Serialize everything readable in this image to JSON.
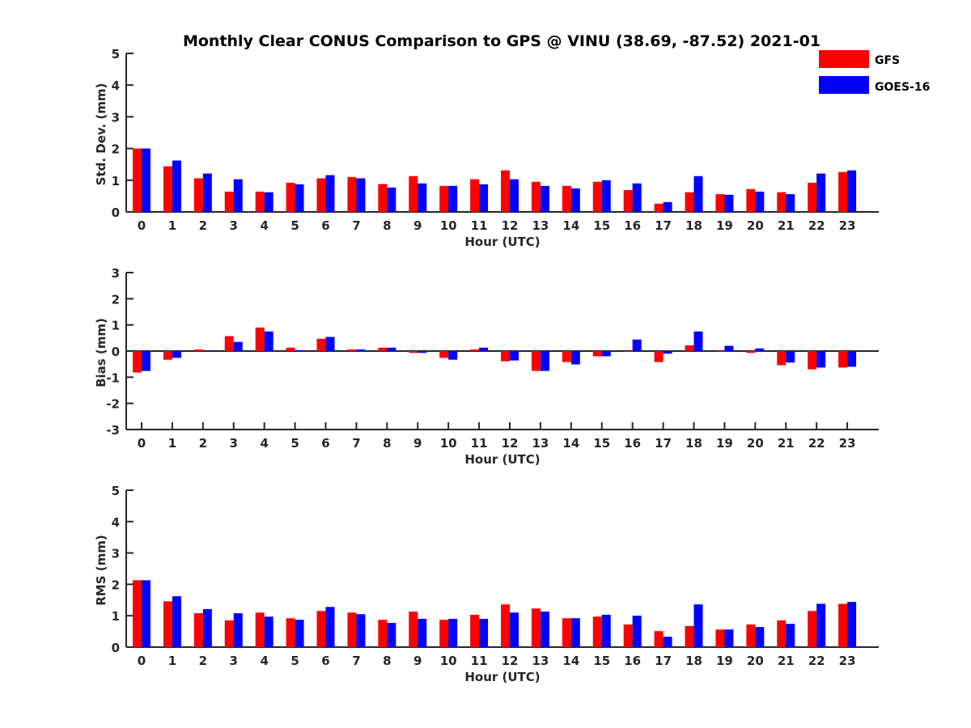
{
  "chart_data": [
    {
      "type": "bar",
      "title": "Monthly Clear CONUS Comparison to GPS @ VINU (38.69, -87.52) 2021-01",
      "xlabel": "Hour (UTC)",
      "ylabel": "Std. Dev. (mm)",
      "ylim": [
        0,
        5
      ],
      "yticks": [
        "0",
        "1",
        "2",
        "3",
        "4",
        "5"
      ],
      "categories": [
        "0",
        "1",
        "2",
        "3",
        "4",
        "5",
        "6",
        "7",
        "8",
        "9",
        "10",
        "11",
        "12",
        "13",
        "14",
        "15",
        "16",
        "17",
        "18",
        "19",
        "20",
        "21",
        "22",
        "23"
      ],
      "series": [
        {
          "name": "GFS",
          "color": "#ff0000",
          "values": [
            2.0,
            1.44,
            1.06,
            0.64,
            0.64,
            0.92,
            1.06,
            1.1,
            0.88,
            1.13,
            0.82,
            1.03,
            1.31,
            0.95,
            0.82,
            0.95,
            0.69,
            0.26,
            0.62,
            0.56,
            0.72,
            0.62,
            0.92,
            1.26
          ]
        },
        {
          "name": "GOES-16",
          "color": "#0000ff",
          "values": [
            2.0,
            1.62,
            1.21,
            1.03,
            0.62,
            0.87,
            1.16,
            1.06,
            0.77,
            0.9,
            0.82,
            0.87,
            1.03,
            0.82,
            0.74,
            1.0,
            0.9,
            0.31,
            1.13,
            0.54,
            0.64,
            0.56,
            1.21,
            1.31
          ]
        }
      ],
      "legend": "top-right",
      "grid": false
    },
    {
      "type": "bar",
      "xlabel": "Hour (UTC)",
      "ylabel": "Bias (mm)",
      "ylim": [
        -3,
        3
      ],
      "yticks": [
        "-3",
        "-2",
        "-1",
        "0",
        "1",
        "2",
        "3"
      ],
      "zero_line": true,
      "categories": [
        "0",
        "1",
        "2",
        "3",
        "4",
        "5",
        "6",
        "7",
        "8",
        "9",
        "10",
        "11",
        "12",
        "13",
        "14",
        "15",
        "16",
        "17",
        "18",
        "19",
        "20",
        "21",
        "22",
        "23"
      ],
      "series": [
        {
          "name": "GFS",
          "color": "#ff0000",
          "values": [
            -0.82,
            -0.33,
            0.06,
            0.57,
            0.9,
            0.13,
            0.47,
            0.06,
            0.13,
            -0.07,
            -0.26,
            0.06,
            -0.39,
            -0.76,
            -0.42,
            -0.2,
            0.0,
            -0.42,
            0.22,
            0.0,
            -0.07,
            -0.54,
            -0.7,
            -0.63
          ]
        },
        {
          "name": "GOES-16",
          "color": "#0000ff",
          "values": [
            -0.76,
            -0.26,
            0.0,
            0.35,
            0.75,
            0.03,
            0.54,
            0.06,
            0.13,
            -0.07,
            -0.33,
            0.13,
            -0.36,
            -0.76,
            -0.51,
            -0.2,
            0.44,
            -0.1,
            0.75,
            0.2,
            0.1,
            -0.44,
            -0.63,
            -0.6
          ]
        }
      ],
      "grid": false
    },
    {
      "type": "bar",
      "xlabel": "Hour (UTC)",
      "ylabel": "RMS (mm)",
      "ylim": [
        0,
        5
      ],
      "yticks": [
        "0",
        "1",
        "2",
        "3",
        "4",
        "5"
      ],
      "categories": [
        "0",
        "1",
        "2",
        "3",
        "4",
        "5",
        "6",
        "7",
        "8",
        "9",
        "10",
        "11",
        "12",
        "13",
        "14",
        "15",
        "16",
        "17",
        "18",
        "19",
        "20",
        "21",
        "22",
        "23"
      ],
      "series": [
        {
          "name": "GFS",
          "color": "#ff0000",
          "values": [
            2.13,
            1.46,
            1.08,
            0.85,
            1.1,
            0.92,
            1.15,
            1.1,
            0.87,
            1.13,
            0.87,
            1.03,
            1.36,
            1.23,
            0.92,
            0.97,
            0.72,
            0.51,
            0.67,
            0.56,
            0.72,
            0.85,
            1.15,
            1.38
          ]
        },
        {
          "name": "GOES-16",
          "color": "#0000ff",
          "values": [
            2.13,
            1.62,
            1.21,
            1.08,
            0.97,
            0.87,
            1.28,
            1.05,
            0.77,
            0.9,
            0.9,
            0.9,
            1.1,
            1.13,
            0.92,
            1.03,
            1.0,
            0.33,
            1.36,
            0.56,
            0.64,
            0.74,
            1.38,
            1.44
          ]
        }
      ],
      "grid": false
    }
  ],
  "legend": {
    "items": [
      {
        "label": "GFS",
        "color": "#ff0000"
      },
      {
        "label": "GOES-16",
        "color": "#0000ff"
      }
    ]
  }
}
